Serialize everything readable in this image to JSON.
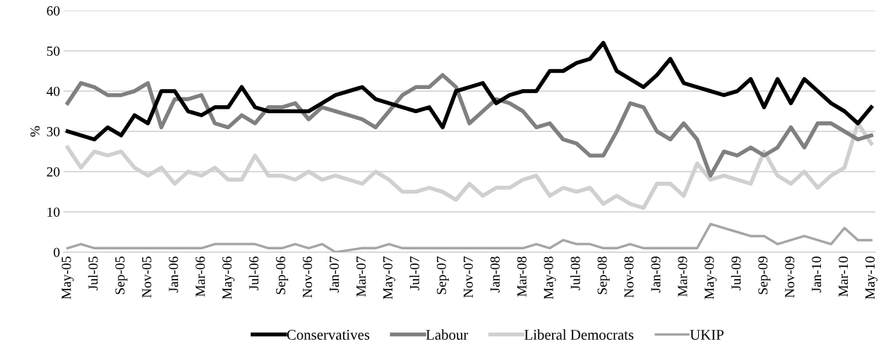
{
  "chart_data": {
    "type": "line",
    "ylabel": "%",
    "categories": [
      "May-05",
      null,
      "Jul-05",
      null,
      "Sep-05",
      null,
      "Nov-05",
      null,
      "Jan-06",
      null,
      "Mar-06",
      null,
      "May-06",
      null,
      "Jul-06",
      null,
      "Sep-06",
      null,
      "Nov-06",
      null,
      "Jan-07",
      null,
      "Mar-07",
      null,
      "May-07",
      null,
      "Jul-07",
      null,
      "Sep-07",
      null,
      "Nov-07",
      null,
      "Jan-08",
      null,
      "Mar-08",
      null,
      "May-08",
      null,
      "Jul-08",
      null,
      "Sep-08",
      null,
      "Nov-08",
      null,
      "Jan-09",
      null,
      "Mar-09",
      null,
      "May-09",
      null,
      "Jul-09",
      null,
      "Sep-09",
      null,
      "Nov-09",
      null,
      "Jan-10",
      null,
      "Mar-10",
      null,
      "May-10"
    ],
    "series": [
      {
        "name": "Conservatives",
        "color": "#000000",
        "values": [
          30,
          29,
          28,
          31,
          29,
          34,
          32,
          40,
          40,
          35,
          34,
          36,
          36,
          41,
          36,
          35,
          35,
          35,
          35,
          37,
          39,
          40,
          41,
          38,
          37,
          36,
          35,
          36,
          31,
          40,
          41,
          42,
          37,
          39,
          40,
          40,
          45,
          45,
          47,
          48,
          52,
          45,
          43,
          41,
          44,
          48,
          42,
          41,
          40,
          39,
          40,
          43,
          36,
          43,
          37,
          43,
          40,
          37,
          35,
          32,
          36
        ]
      },
      {
        "name": "Labour",
        "color": "#808080",
        "values": [
          37,
          42,
          41,
          39,
          39,
          40,
          42,
          31,
          38,
          38,
          39,
          32,
          31,
          34,
          32,
          36,
          36,
          37,
          33,
          36,
          35,
          34,
          33,
          31,
          35,
          39,
          41,
          41,
          44,
          41,
          32,
          35,
          38,
          37,
          35,
          31,
          32,
          28,
          27,
          24,
          24,
          30,
          37,
          36,
          30,
          28,
          32,
          28,
          19,
          25,
          24,
          26,
          24,
          26,
          31,
          26,
          32,
          32,
          30,
          28,
          29
        ]
      },
      {
        "name": "Liberal Democrats",
        "color": "#d0d0d0",
        "values": [
          26,
          21,
          25,
          24,
          25,
          21,
          19,
          21,
          17,
          20,
          19,
          21,
          18,
          18,
          24,
          19,
          19,
          18,
          20,
          18,
          19,
          18,
          17,
          20,
          18,
          15,
          15,
          16,
          15,
          13,
          17,
          14,
          16,
          16,
          18,
          19,
          14,
          16,
          15,
          16,
          12,
          14,
          12,
          11,
          17,
          17,
          14,
          22,
          18,
          19,
          18,
          17,
          25,
          19,
          17,
          20,
          16,
          19,
          21,
          32,
          27
        ]
      },
      {
        "name": "UKIP",
        "color": "#a6a6a6",
        "values": [
          1,
          2,
          1,
          1,
          1,
          1,
          1,
          1,
          1,
          1,
          1,
          2,
          2,
          2,
          2,
          1,
          1,
          2,
          1,
          2,
          0,
          0.5,
          1,
          1,
          2,
          1,
          1,
          1,
          1,
          1,
          1,
          1,
          1,
          1,
          1,
          2,
          1,
          3,
          2,
          2,
          1,
          1,
          2,
          1,
          1,
          1,
          1,
          1,
          7,
          6,
          5,
          4,
          4,
          2,
          3,
          4,
          3,
          2,
          6,
          3,
          3
        ]
      }
    ],
    "ylim": [
      0,
      60
    ],
    "yticks": [
      0,
      10,
      20,
      30,
      40,
      50,
      60
    ],
    "grid": "y",
    "legend": "bottom",
    "marker": "none",
    "line_style": "solid"
  }
}
